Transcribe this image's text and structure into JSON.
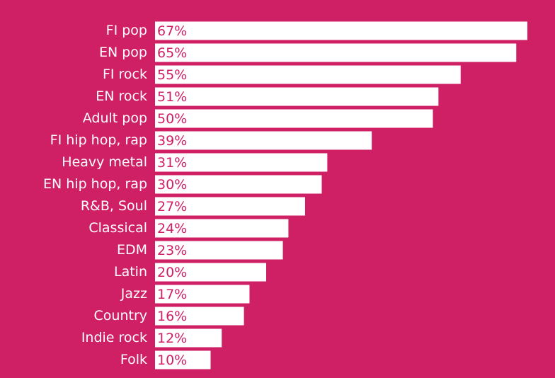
{
  "colors": {
    "background": "#cf2066",
    "bar": "#ffffff",
    "value_text": "#cf2066",
    "category_text": "#ffffff"
  },
  "chart_data": {
    "type": "bar",
    "orientation": "horizontal",
    "title": "",
    "xlabel": "",
    "ylabel": "",
    "grid": false,
    "legend": "none",
    "unit": "%",
    "categories": [
      "FI pop",
      "EN pop",
      "FI rock",
      "EN rock",
      "Adult pop",
      "FI hip hop, rap",
      "Heavy metal",
      "EN hip hop, rap",
      "R&B, Soul",
      "Classical",
      "EDM",
      "Latin",
      "Jazz",
      "Country",
      "Indie rock",
      "Folk"
    ],
    "values": [
      67,
      65,
      55,
      51,
      50,
      39,
      31,
      30,
      27,
      24,
      23,
      20,
      17,
      16,
      12,
      10
    ],
    "value_labels": [
      "67%",
      "65%",
      "55%",
      "51%",
      "50%",
      "39%",
      "31%",
      "30%",
      "27%",
      "24%",
      "23%",
      "20%",
      "17%",
      "16%",
      "12%",
      "10%"
    ]
  }
}
